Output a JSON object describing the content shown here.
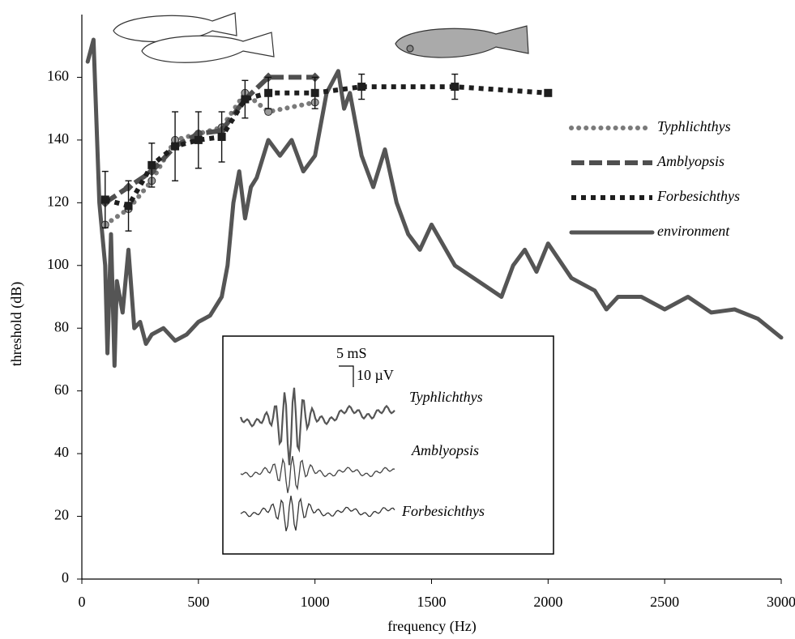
{
  "chart_data": {
    "type": "line",
    "x_label": "frequency (Hz)",
    "y_label": "threshold (dB)",
    "xlim": [
      0,
      3000
    ],
    "xticks": [
      0,
      500,
      1000,
      1500,
      2000,
      2500,
      3000
    ],
    "ylim": [
      0,
      180
    ],
    "yticks": [
      0,
      20,
      40,
      60,
      80,
      100,
      120,
      140,
      160
    ],
    "legend": "upper right",
    "x": [
      100,
      200,
      300,
      400,
      500,
      600,
      700,
      800,
      1000,
      1200,
      1600,
      2000
    ],
    "series": [
      {
        "name": "Typhlichthys",
        "color": "#7a7a7a",
        "dash": "dot",
        "marker": "circle",
        "values": [
          113,
          118,
          127,
          140,
          142,
          144,
          155,
          149,
          152,
          null,
          null,
          null
        ]
      },
      {
        "name": "Amblyopsis",
        "color": "#4f4f4f",
        "dash": "dash",
        "marker": "diamond",
        "values": [
          120,
          125,
          130,
          138,
          142,
          143,
          153,
          160,
          160,
          null,
          null,
          null
        ]
      },
      {
        "name": "Forbesichthys",
        "color": "#1e1e1e",
        "dash": "square-dot",
        "marker": "square",
        "values": [
          121,
          119,
          132,
          138,
          140,
          141,
          153,
          155,
          155,
          157,
          157,
          155
        ],
        "errors": [
          9,
          8,
          7,
          11,
          9,
          8,
          6,
          5,
          5,
          4,
          4,
          0
        ]
      },
      {
        "name": "environment",
        "color": "#555555",
        "dash": "solid",
        "x": [
          25,
          50,
          75,
          100,
          110,
          125,
          140,
          150,
          175,
          200,
          225,
          250,
          275,
          300,
          350,
          400,
          450,
          500,
          550,
          600,
          625,
          650,
          675,
          700,
          725,
          750,
          800,
          850,
          900,
          950,
          1000,
          1050,
          1100,
          1125,
          1150,
          1200,
          1250,
          1300,
          1350,
          1400,
          1450,
          1500,
          1600,
          1700,
          1800,
          1850,
          1900,
          1950,
          2000,
          2100,
          2200,
          2250,
          2300,
          2400,
          2500,
          2600,
          2700,
          2800,
          2900,
          3000
        ],
        "values": [
          165,
          172,
          120,
          100,
          72,
          110,
          68,
          95,
          85,
          105,
          80,
          82,
          75,
          78,
          80,
          76,
          78,
          82,
          84,
          90,
          100,
          120,
          130,
          115,
          125,
          128,
          140,
          135,
          140,
          130,
          135,
          155,
          162,
          150,
          155,
          135,
          125,
          137,
          120,
          110,
          105,
          113,
          100,
          95,
          90,
          100,
          105,
          98,
          107,
          96,
          92,
          86,
          90,
          90,
          86,
          90,
          85,
          86,
          83,
          77
        ]
      }
    ],
    "inset": {
      "time_scale": "5 mS",
      "voltage_scale": "10 µV",
      "labels": [
        "Typhlichthys",
        "Amblyopsis",
        "Forbesichthys"
      ]
    }
  }
}
